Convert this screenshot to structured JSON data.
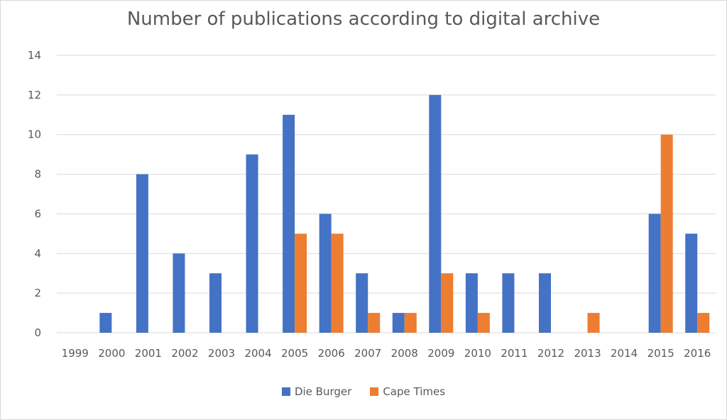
{
  "chart_data": {
    "type": "bar",
    "title": "Number of publications according to digital archive",
    "xlabel": "",
    "ylabel": "",
    "categories": [
      "1999",
      "2000",
      "2001",
      "2002",
      "2003",
      "2004",
      "2005",
      "2006",
      "2007",
      "2008",
      "2009",
      "2010",
      "2011",
      "2012",
      "2013",
      "2014",
      "2015",
      "2016"
    ],
    "series": [
      {
        "name": "Die Burger",
        "color": "#4472C4",
        "values": [
          0,
          1,
          8,
          4,
          3,
          9,
          11,
          6,
          3,
          1,
          12,
          3,
          3,
          3,
          0,
          0,
          6,
          5
        ]
      },
      {
        "name": "Cape Times",
        "color": "#ED7D31",
        "values": [
          0,
          0,
          0,
          0,
          0,
          0,
          5,
          5,
          1,
          1,
          3,
          1,
          0,
          0,
          1,
          0,
          10,
          1
        ]
      }
    ],
    "ylim": [
      0,
      14
    ],
    "yticks": [
      0,
      2,
      4,
      6,
      8,
      10,
      12,
      14
    ],
    "grid": true,
    "legend_position": "bottom"
  }
}
